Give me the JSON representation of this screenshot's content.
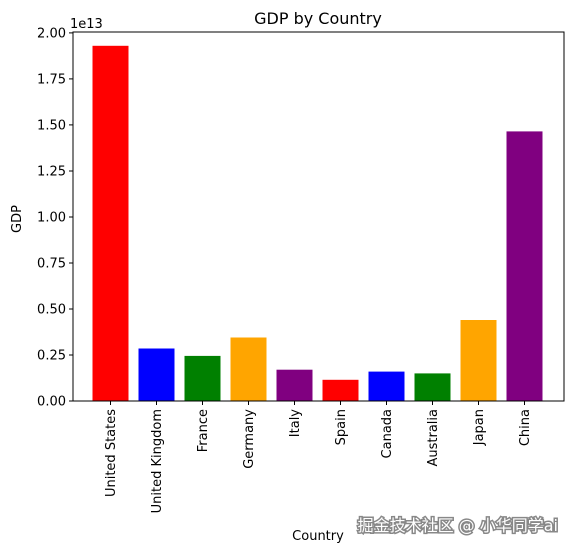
{
  "chart_data": {
    "type": "bar",
    "title": "GDP by Country",
    "xlabel": "Country",
    "ylabel": "GDP",
    "scale_label": "1e13",
    "categories": [
      "United States",
      "United Kingdom",
      "France",
      "Germany",
      "Italy",
      "Spain",
      "Canada",
      "Australia",
      "Japan",
      "China"
    ],
    "values": [
      19300000000000.0,
      2850000000000.0,
      2450000000000.0,
      3450000000000.0,
      1700000000000.0,
      1150000000000.0,
      1600000000000.0,
      1500000000000.0,
      4400000000000.0,
      14650000000000.0
    ],
    "colors": [
      "#ff0000",
      "#0000ff",
      "#008000",
      "#ffa500",
      "#800080",
      "#ff0000",
      "#0000ff",
      "#008000",
      "#ffa500",
      "#800080"
    ],
    "yticks": [
      "0.00",
      "0.25",
      "0.50",
      "0.75",
      "1.00",
      "1.25",
      "1.50",
      "1.75",
      "2.00"
    ],
    "ylim": [
      0,
      20000000000000.0
    ],
    "grid": false,
    "legend": "none"
  },
  "watermark": "掘金技术社区 @ 小华同学ai"
}
